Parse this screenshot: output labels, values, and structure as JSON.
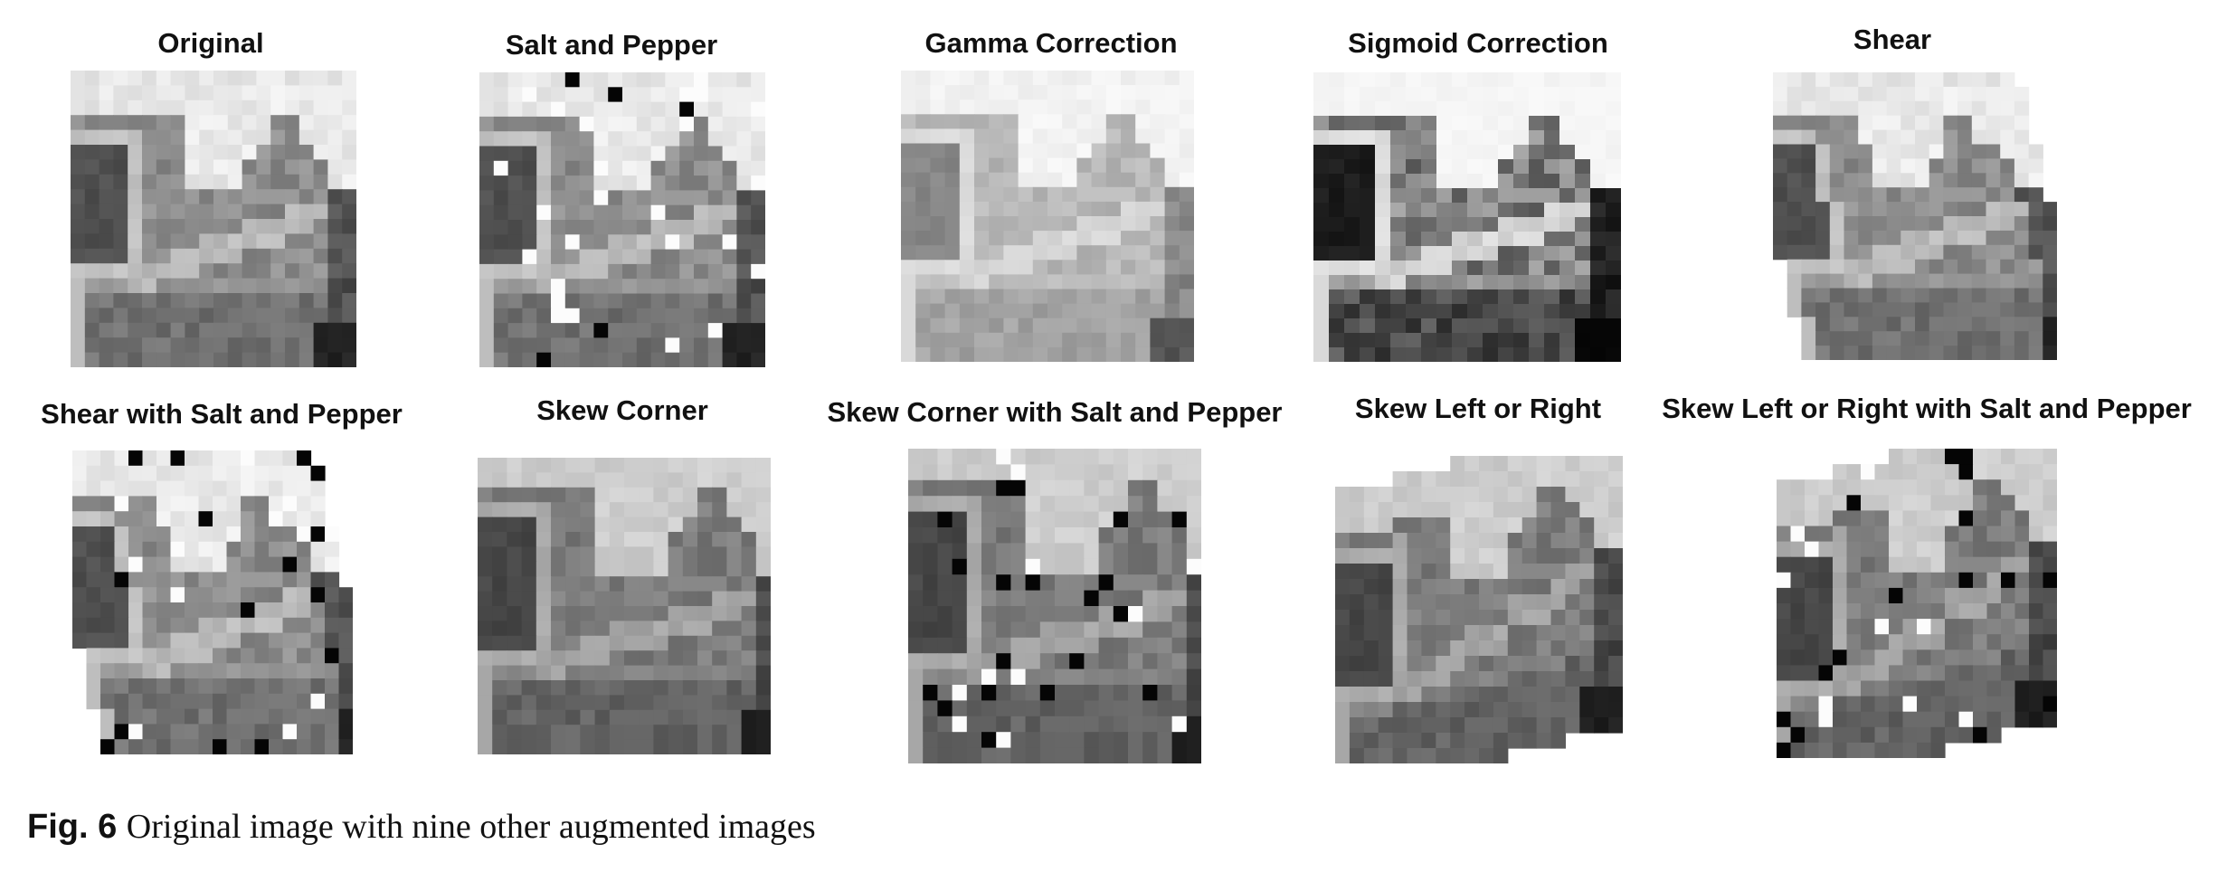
{
  "figure": {
    "panels": [
      {
        "title": "Original",
        "variant": "original"
      },
      {
        "title": "Salt and Pepper",
        "variant": "salt-pepper"
      },
      {
        "title": "Gamma Correction",
        "variant": "gamma"
      },
      {
        "title": "Sigmoid Correction",
        "variant": "sigmoid"
      },
      {
        "title": "Shear",
        "variant": "shear"
      },
      {
        "title": "Shear with Salt and Pepper",
        "variant": "shear-salt-pepper"
      },
      {
        "title": "Skew Corner",
        "variant": "skew-corner"
      },
      {
        "title": "Skew Corner with Salt and Pepper",
        "variant": "skew-corner-salt-pepper"
      },
      {
        "title": "Skew Left or Right",
        "variant": "skew-left-right"
      },
      {
        "title": "Skew Left or Right with Salt and Pepper",
        "variant": "skew-left-right-salt-pepper"
      }
    ],
    "caption": {
      "label": "Fig. 6",
      "text": "Original image with nine other augmented images"
    }
  }
}
